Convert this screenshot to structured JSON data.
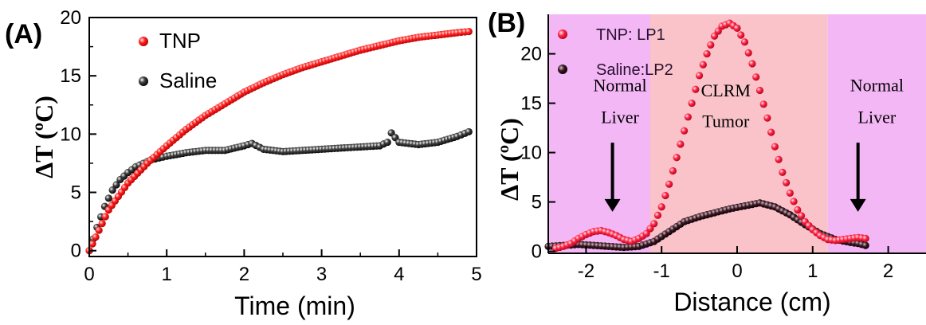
{
  "chart_data": [
    {
      "panel_label": "(A)",
      "type": "scatter",
      "xlabel": "Time (min)",
      "ylabel": "ΔT (ºC)",
      "xlim": [
        0,
        5
      ],
      "ylim": [
        -0.5,
        20
      ],
      "xticks": [
        "0",
        "1",
        "2",
        "3",
        "4",
        "5"
      ],
      "yticks": [
        "0",
        "5",
        "10",
        "15",
        "20"
      ],
      "legend_position": "top-left",
      "grid": false,
      "series": [
        {
          "name": "TNP",
          "color": "#ff1a1a",
          "x": [
            0,
            0.25,
            0.5,
            0.75,
            1.0,
            1.25,
            1.5,
            1.75,
            2.0,
            2.25,
            2.5,
            2.75,
            3.0,
            3.25,
            3.5,
            3.75,
            4.0,
            4.25,
            4.5,
            4.75,
            4.9
          ],
          "y": [
            0,
            3.5,
            5.8,
            7.5,
            9.0,
            10.4,
            11.6,
            12.6,
            13.6,
            14.4,
            15.1,
            15.7,
            16.2,
            16.7,
            17.2,
            17.6,
            18.0,
            18.3,
            18.5,
            18.7,
            18.8
          ]
        },
        {
          "name": "Saline",
          "color": "#1a1a1a",
          "x": [
            0,
            0.1,
            0.2,
            0.3,
            0.4,
            0.5,
            0.6,
            0.8,
            1.0,
            1.25,
            1.5,
            1.75,
            2.0,
            2.1,
            2.25,
            2.5,
            2.75,
            3.0,
            3.25,
            3.5,
            3.75,
            3.85,
            3.9,
            4.0,
            4.25,
            4.5,
            4.75,
            4.9
          ],
          "y": [
            0,
            2.0,
            3.8,
            5.2,
            6.1,
            6.7,
            7.2,
            7.8,
            8.1,
            8.4,
            8.6,
            8.6,
            9.0,
            9.2,
            8.7,
            8.5,
            8.6,
            8.7,
            8.8,
            8.9,
            9.0,
            9.3,
            10.1,
            9.3,
            9.1,
            9.3,
            9.8,
            10.2
          ]
        }
      ]
    },
    {
      "panel_label": "(B)",
      "type": "scatter",
      "xlabel": "Distance (cm)",
      "ylabel": "ΔT (ºC)",
      "xlim": [
        -2.5,
        2.5
      ],
      "ylim": [
        -0.2,
        24
      ],
      "xticks": [
        "-2",
        "-1",
        "0",
        "1",
        "2"
      ],
      "yticks": [
        "0",
        "5",
        "10",
        "15",
        "20"
      ],
      "legend_position": "top-left",
      "grid": false,
      "regions": [
        {
          "label": "Normal Liver",
          "x": [
            -2.5,
            -1.15
          ],
          "color": "#f3b7f5"
        },
        {
          "label": "CLRM Tumor",
          "x": [
            -1.15,
            1.2
          ],
          "color": "#f9c3c9"
        },
        {
          "label": "Normal Liver",
          "x": [
            1.2,
            2.5
          ],
          "color": "#f3b7f5"
        }
      ],
      "annotations": [
        {
          "text": "Normal",
          "x": -1.55,
          "y": 16.2
        },
        {
          "text": "Liver",
          "x": -1.55,
          "y": 13.0
        },
        {
          "text": "CLRM",
          "x": -0.15,
          "y": 15.7
        },
        {
          "text": "Tumor",
          "x": -0.15,
          "y": 12.6
        },
        {
          "text": "Normal",
          "x": 1.85,
          "y": 16.2
        },
        {
          "text": "Liver",
          "x": 1.85,
          "y": 13.0
        }
      ],
      "arrows": [
        {
          "x": -1.65,
          "y_from": 11.0,
          "y_to": 4.0
        },
        {
          "x": 1.6,
          "y_from": 11.0,
          "y_to": 4.0
        }
      ],
      "series": [
        {
          "name": "TNP: LP1",
          "color": "#ff1f3a",
          "x": [
            -2.4,
            -2.3,
            -2.2,
            -2.1,
            -2.0,
            -1.9,
            -1.8,
            -1.7,
            -1.6,
            -1.5,
            -1.4,
            -1.3,
            -1.2,
            -1.1,
            -1.0,
            -0.9,
            -0.8,
            -0.7,
            -0.6,
            -0.5,
            -0.4,
            -0.3,
            -0.2,
            -0.1,
            0.0,
            0.1,
            0.2,
            0.3,
            0.4,
            0.5,
            0.6,
            0.7,
            0.8,
            0.9,
            1.0,
            1.1,
            1.2,
            1.3,
            1.4,
            1.5,
            1.6,
            1.7
          ],
          "y": [
            0.3,
            0.5,
            0.8,
            1.3,
            1.7,
            2.0,
            2.1,
            1.9,
            1.6,
            1.2,
            1.0,
            1.3,
            1.8,
            2.8,
            4.5,
            6.8,
            9.5,
            12.2,
            15.0,
            17.8,
            20.0,
            21.8,
            22.8,
            23.1,
            22.6,
            21.2,
            19.0,
            16.3,
            13.5,
            10.6,
            8.0,
            5.9,
            4.2,
            3.0,
            2.2,
            1.6,
            1.2,
            1.1,
            1.2,
            1.3,
            1.4,
            1.3
          ]
        },
        {
          "name": "Saline:LP2",
          "color": "#2a1018",
          "x": [
            -2.5,
            -2.3,
            -2.1,
            -1.9,
            -1.7,
            -1.5,
            -1.3,
            -1.1,
            -0.9,
            -0.7,
            -0.5,
            -0.3,
            -0.1,
            0.1,
            0.3,
            0.5,
            0.7,
            0.9,
            1.1,
            1.3,
            1.5,
            1.6,
            1.7
          ],
          "y": [
            0.5,
            0.6,
            0.7,
            0.6,
            0.5,
            0.4,
            0.5,
            1.0,
            2.0,
            3.0,
            3.5,
            3.9,
            4.3,
            4.6,
            4.9,
            4.5,
            3.7,
            2.7,
            1.8,
            1.2,
            0.9,
            0.8,
            0.6
          ]
        }
      ]
    }
  ]
}
